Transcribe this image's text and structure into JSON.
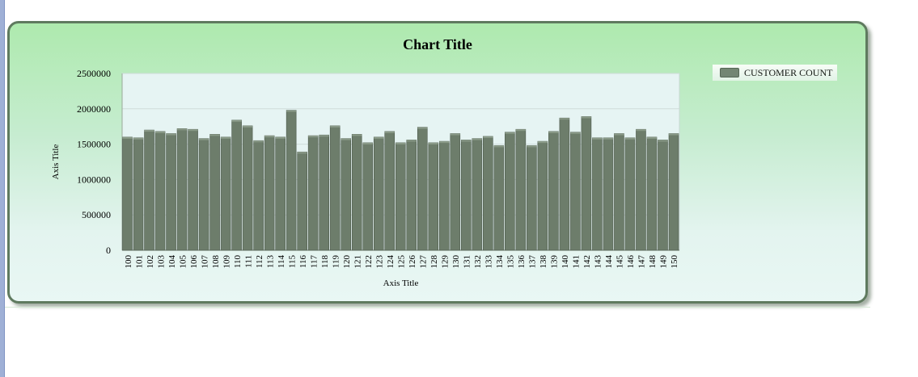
{
  "chart": {
    "title": "Chart Title",
    "legend_label": "CUSTOMER COUNT"
  },
  "colors": {
    "bar": "#6d7d6b",
    "bar_edge": "#4d5a4c",
    "plot_bg": "#e6f4f3",
    "panel_border": "#5f7a5f"
  },
  "chart_data": {
    "type": "bar",
    "title": "Chart Title",
    "xlabel": "Axis Title",
    "ylabel": "Axis Title",
    "ylim": [
      0,
      2500000
    ],
    "yticks": [
      0,
      500000,
      1000000,
      1500000,
      2000000,
      2500000
    ],
    "ytick_labels": [
      "0",
      "500000",
      "1000000",
      "1500000",
      "2000000",
      "2500000"
    ],
    "grid": true,
    "legend_position": "top-right",
    "categories": [
      "100",
      "101",
      "102",
      "103",
      "104",
      "105",
      "106",
      "107",
      "108",
      "109",
      "110",
      "111",
      "112",
      "113",
      "114",
      "115",
      "116",
      "117",
      "118",
      "119",
      "120",
      "121",
      "122",
      "123",
      "124",
      "125",
      "126",
      "127",
      "128",
      "129",
      "130",
      "131",
      "132",
      "133",
      "134",
      "135",
      "136",
      "137",
      "138",
      "139",
      "140",
      "141",
      "142",
      "143",
      "144",
      "145",
      "146",
      "147",
      "148",
      "149",
      "150"
    ],
    "series": [
      {
        "name": "CUSTOMER COUNT",
        "values": [
          1600000,
          1590000,
          1700000,
          1680000,
          1650000,
          1720000,
          1710000,
          1580000,
          1640000,
          1600000,
          1840000,
          1760000,
          1550000,
          1620000,
          1600000,
          1980000,
          1390000,
          1620000,
          1630000,
          1760000,
          1580000,
          1640000,
          1520000,
          1600000,
          1680000,
          1520000,
          1560000,
          1740000,
          1520000,
          1540000,
          1650000,
          1560000,
          1580000,
          1610000,
          1480000,
          1670000,
          1710000,
          1480000,
          1540000,
          1680000,
          1870000,
          1670000,
          1890000,
          1590000,
          1590000,
          1650000,
          1590000,
          1710000,
          1600000,
          1560000,
          1650000
        ]
      }
    ]
  }
}
